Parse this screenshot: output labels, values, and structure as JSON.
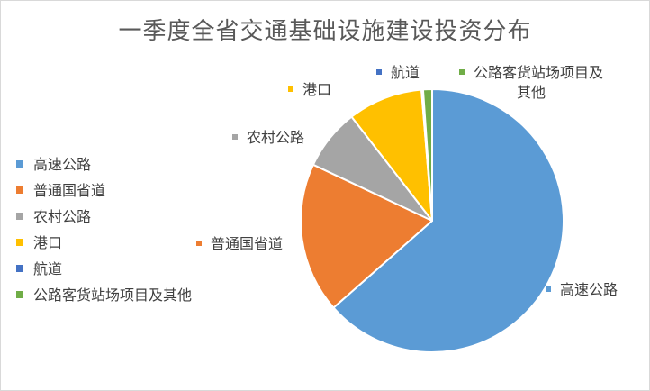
{
  "chart_data": {
    "type": "pie",
    "title": "一季度全省交通基础设施建设投资分布",
    "legend_position": "left",
    "slices": [
      {
        "label": "高速公路",
        "value": 63.5,
        "color": "#5b9bd5"
      },
      {
        "label": "普通国省道",
        "value": 18.5,
        "color": "#ed7d31"
      },
      {
        "label": "农村公路",
        "value": 7.5,
        "color": "#a5a5a5"
      },
      {
        "label": "港口",
        "value": 9.2,
        "color": "#ffc000"
      },
      {
        "label": "航道",
        "value": 0.2,
        "color": "#4472c4"
      },
      {
        "label": "公路客货站场项目及其他",
        "value": 1.1,
        "color": "#70ad47"
      }
    ]
  }
}
